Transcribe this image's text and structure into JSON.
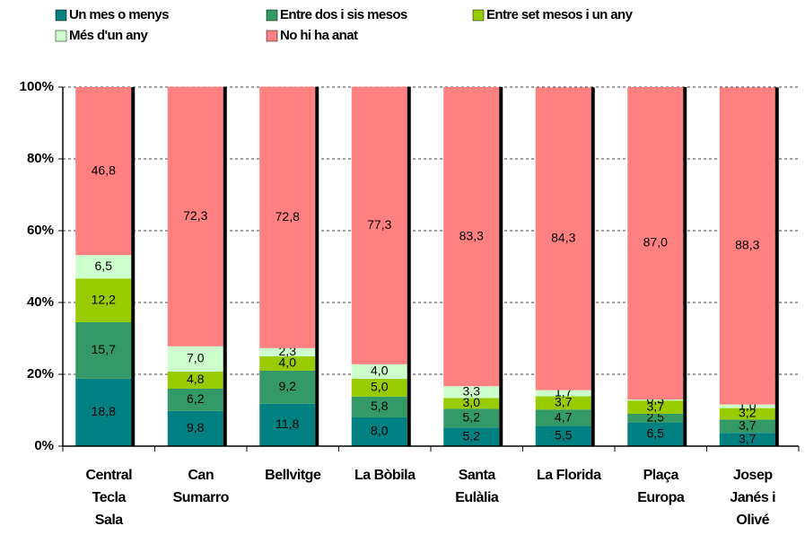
{
  "chart_data": {
    "type": "stacked_bar",
    "categories": [
      "Central\nTecla\nSala",
      "Can\nSumarro",
      "Bellvitge",
      "La Bòbila",
      "Santa\nEulàlia",
      "La Florida",
      "Plaça\nEuropa",
      "Josep\nJanés i\nOlivé"
    ],
    "series": [
      {
        "name": "Un mes o menys",
        "color": "#008080",
        "values": [
          18.8,
          9.8,
          11.8,
          8.0,
          5.2,
          5.5,
          6.5,
          3.7
        ],
        "value_labels": [
          "18,8",
          "9,8",
          "11,8",
          "8,0",
          "5,2",
          "5,5",
          "6,5",
          "3,7"
        ]
      },
      {
        "name": "Entre dos i sis mesos",
        "color": "#339966",
        "values": [
          15.7,
          6.2,
          9.2,
          5.8,
          5.2,
          4.7,
          2.5,
          3.7
        ],
        "value_labels": [
          "15,7",
          "6,2",
          "9,2",
          "5,8",
          "5,2",
          "4,7",
          "2,5",
          "3,7"
        ]
      },
      {
        "name": "Entre set mesos i un any",
        "color": "#99cc00",
        "values": [
          12.2,
          4.8,
          4.0,
          5.0,
          3.0,
          3.7,
          3.7,
          3.2
        ],
        "value_labels": [
          "12,2",
          "4,8",
          "4,0",
          "5,0",
          "3,0",
          "3,7",
          "3,7",
          "3,2"
        ]
      },
      {
        "name": "Més d'un any",
        "color": "#ccffcc",
        "values": [
          6.5,
          7.0,
          2.3,
          4.0,
          3.3,
          1.7,
          0.3,
          1.0
        ],
        "value_labels": [
          "6,5",
          "7,0",
          "2,3",
          "4,0",
          "3,3",
          "1,7",
          "0,3",
          "1,0"
        ]
      },
      {
        "name": "No hi ha anat",
        "color": "#ff8080",
        "values": [
          46.8,
          72.3,
          72.8,
          77.3,
          83.3,
          84.3,
          87.0,
          88.3
        ],
        "value_labels": [
          "46,8",
          "72,3",
          "72,8",
          "77,3",
          "83,3",
          "84,3",
          "87,0",
          "88,3"
        ]
      }
    ],
    "ylim": [
      0,
      100
    ],
    "yticks": [
      {
        "value": 0,
        "label": "0%"
      },
      {
        "value": 20,
        "label": "20%"
      },
      {
        "value": 40,
        "label": "40%"
      },
      {
        "value": 60,
        "label": "60%"
      },
      {
        "value": 80,
        "label": "80%"
      },
      {
        "value": 100,
        "label": "100%"
      }
    ],
    "grid": true
  }
}
